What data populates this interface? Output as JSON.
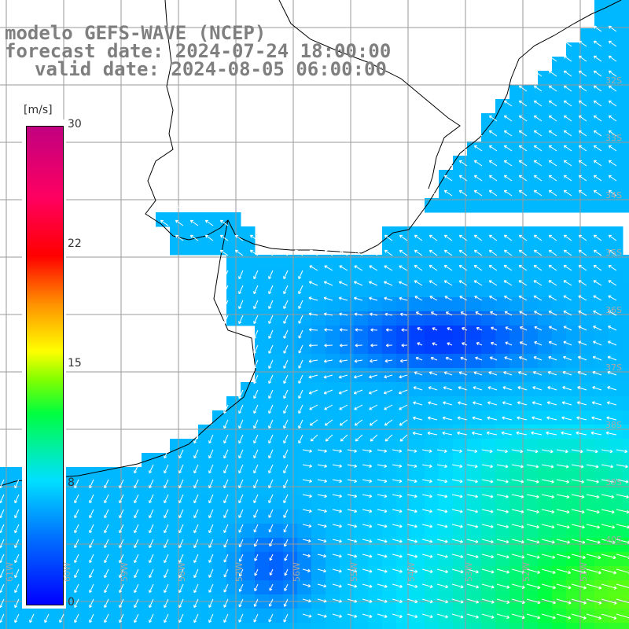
{
  "title": {
    "model": "modelo GEFS-WAVE (NCEP)",
    "forecast": "forecast date: 2024-07-24 18:00:00",
    "valid": "valid date: 2024-08-05 06:00:00"
  },
  "colorbar": {
    "unit": "[m/s]",
    "ticks": [
      "30",
      "22",
      "15",
      "8",
      "0"
    ],
    "tick_values": [
      30,
      22,
      15,
      8,
      0
    ],
    "range": [
      0,
      30
    ]
  },
  "lon_labels": [
    "61W",
    "60W",
    "59W",
    "58W",
    "57W",
    "56W",
    "55W",
    "54W",
    "53W",
    "52W",
    "51W"
  ],
  "lat_labels": [
    "32S",
    "33S",
    "34S",
    "35S",
    "36S",
    "37S",
    "38S",
    "39S",
    "40S"
  ],
  "colors": {
    "land": "#ffffff",
    "grid": "#9a9a9a",
    "coast": "#000000",
    "arrow": "#ffffff",
    "title": "#7f7f7f"
  }
}
